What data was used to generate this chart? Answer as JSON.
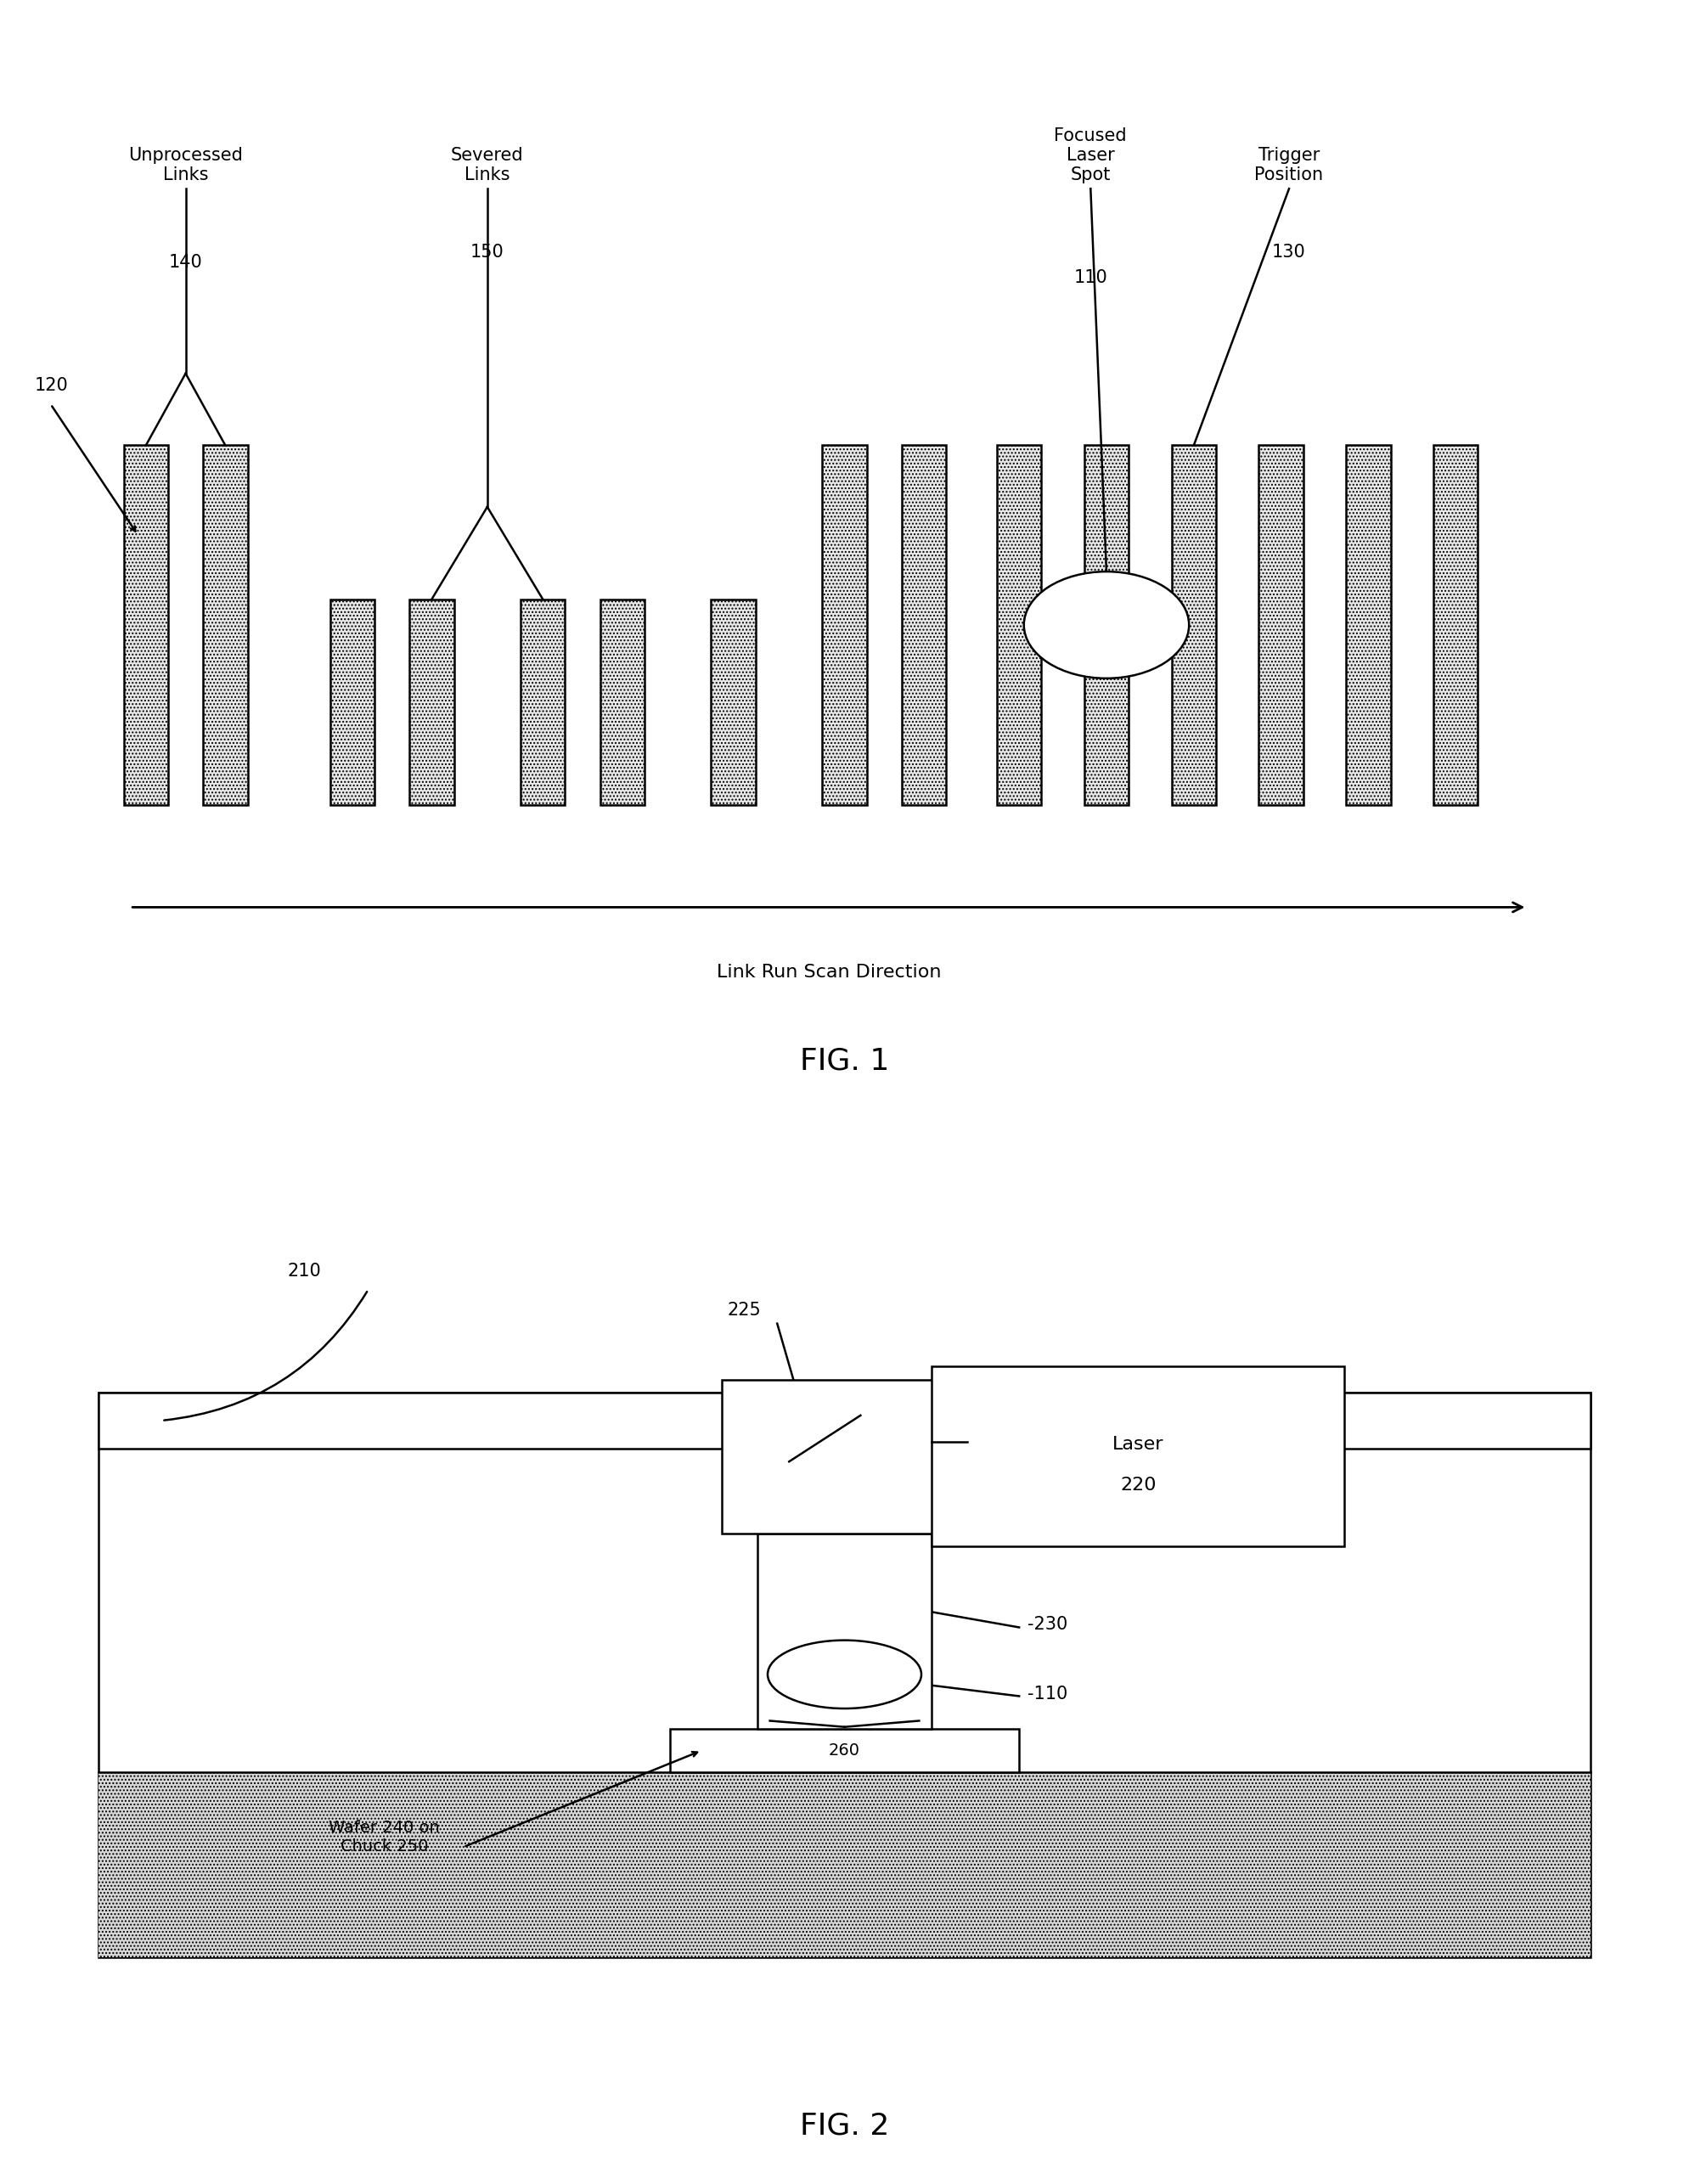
{
  "fig1": {
    "title": "FIG. 1",
    "labels": {
      "unprocessed_links": "Unprocessed\nLinks",
      "unprocessed_num": "140",
      "severed_links": "Severed\nLinks",
      "severed_num": "150",
      "focused_laser": "Focused\nLaser\nSpot",
      "focused_num": "110",
      "trigger": "Trigger\nPosition",
      "trigger_num": "130",
      "arrow_label": "Link Run Scan Direction",
      "ref_120": "120"
    }
  },
  "fig2": {
    "title": "FIG. 2",
    "labels": {
      "laser_text": "Laser",
      "laser_num": "220",
      "ref_210": "210",
      "ref_225": "225",
      "ref_230": "-230",
      "ref_110": "-110",
      "ref_260": "260",
      "wafer_chuck": "Wafer 240 on\nChuck 250"
    }
  },
  "bg_color": "#ffffff",
  "line_color": "#000000",
  "font_size_label": 15,
  "font_size_num": 15,
  "font_size_title": 26
}
